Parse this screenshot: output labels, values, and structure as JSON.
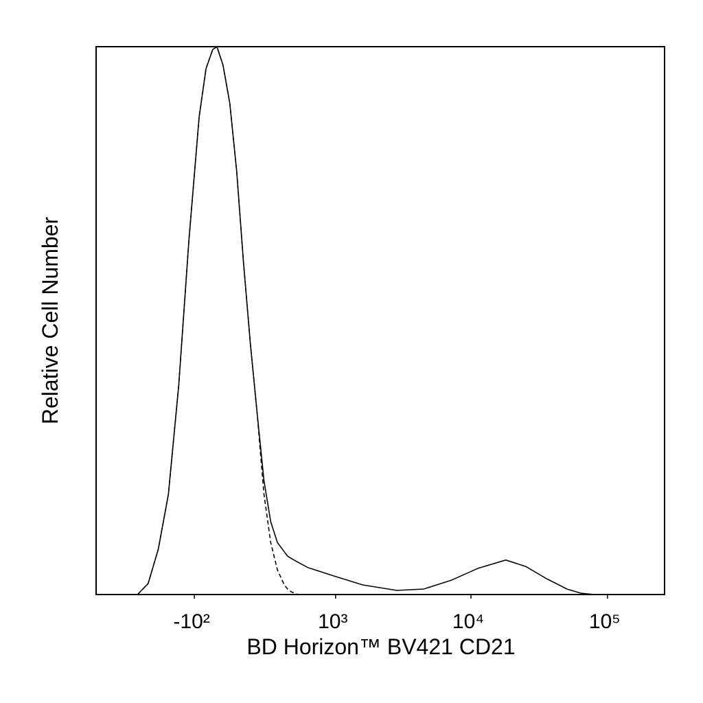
{
  "chart_data": {
    "type": "line",
    "xlabel": "BD Horizon™ BV421 CD21",
    "ylabel": "Relative Cell Number",
    "xscale": "asinh",
    "xlim": [
      -1000,
      262144
    ],
    "ylim": [
      0,
      100
    ],
    "xticks": [
      {
        "value": -100,
        "label": "-10²"
      },
      {
        "value": 1000,
        "label": "10³"
      },
      {
        "value": 10000,
        "label": "10⁴"
      },
      {
        "value": 100000,
        "label": "10⁵"
      }
    ],
    "x": [
      -470,
      -380,
      -305,
      -240,
      -180,
      -127,
      -77,
      -45,
      -14,
      5,
      33,
      64,
      97,
      130,
      166,
      203,
      244,
      287,
      334,
      386,
      413,
      443,
      505,
      613,
      1000,
      1600,
      2850,
      4500,
      7150,
      11300,
      18000,
      25300,
      35800,
      50500,
      63700,
      80000
    ],
    "series": [
      {
        "color": "#000000",
        "style": "solid",
        "values": [
          0,
          2,
          8.3,
          18.3,
          38.3,
          64.7,
          87.2,
          96,
          99.5,
          100,
          96.6,
          89.7,
          77.2,
          60.9,
          45.9,
          33.3,
          20.8,
          13.3,
          9.5,
          7.8,
          7.0,
          6.6,
          5.9,
          4.9,
          3.3,
          1.75,
          0.75,
          1,
          2.6,
          4.8,
          6.3,
          5.1,
          2.9,
          1,
          0.25,
          0
        ]
      },
      {
        "color": "#000000",
        "style": "dashed",
        "values": [
          0,
          2,
          8.3,
          18.3,
          38.3,
          64.7,
          87.2,
          96,
          99.5,
          100,
          96.6,
          89.7,
          77.2,
          60.9,
          45.9,
          33.3,
          18.3,
          9.5,
          4.5,
          1.75,
          1.0,
          0.5,
          0,
          null,
          null,
          null,
          null,
          null,
          null,
          null,
          null,
          null,
          null,
          null,
          null,
          null
        ]
      }
    ]
  }
}
